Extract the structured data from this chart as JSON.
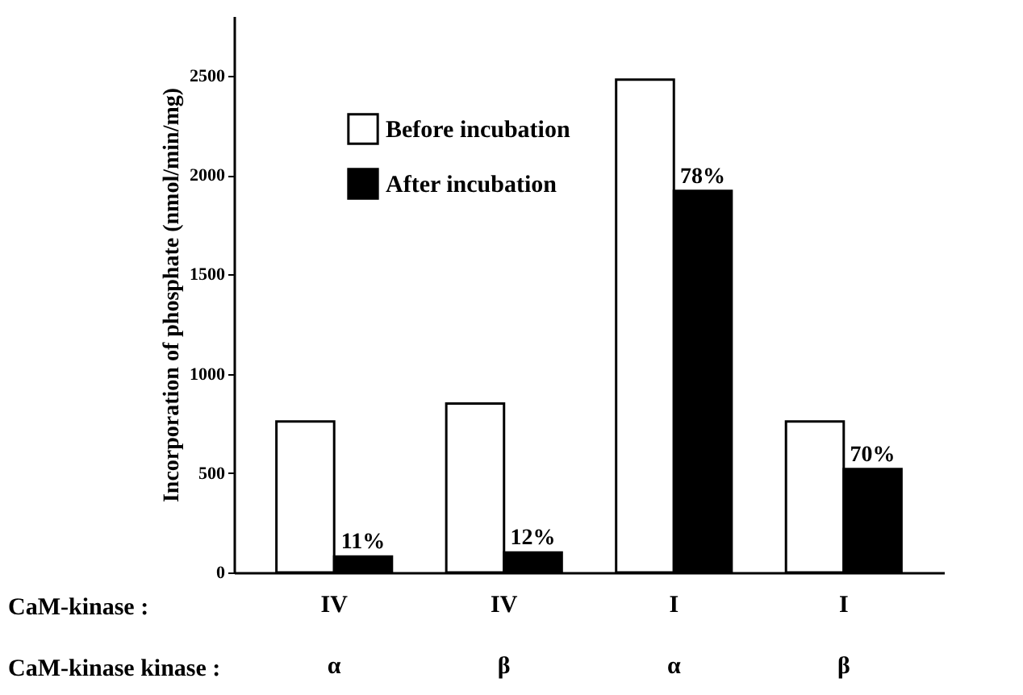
{
  "chart_data": {
    "type": "bar",
    "ylabel": "Incorporation of phosphate (nmol/min/mg)",
    "categories": [
      "IV\nα",
      "IV\nβ",
      "I\nα",
      "I\nβ"
    ],
    "series": [
      {
        "name": "Before incubation",
        "color": "#ffffff",
        "values": [
          760,
          850,
          2480,
          760
        ]
      },
      {
        "name": "After incubation",
        "color": "#000000",
        "values": [
          80,
          100,
          1920,
          520
        ]
      }
    ],
    "annotations": [
      "CaM-kinase :",
      "CaM-kinase kinase :",
      {
        "text": "11%",
        "x": "IV\nα",
        "y": 80
      },
      {
        "text": "12%",
        "x": "IV\nβ",
        "y": 100
      },
      {
        "text": "78%",
        "x": "I\nα",
        "y": 1920
      },
      {
        "text": "70%",
        "x": "I\nβ",
        "y": 520
      }
    ],
    "ylim": [
      0,
      2800
    ],
    "yticks": [
      0,
      500,
      1000,
      1500,
      2000,
      2500
    ],
    "grid": false,
    "legend": "top left"
  }
}
